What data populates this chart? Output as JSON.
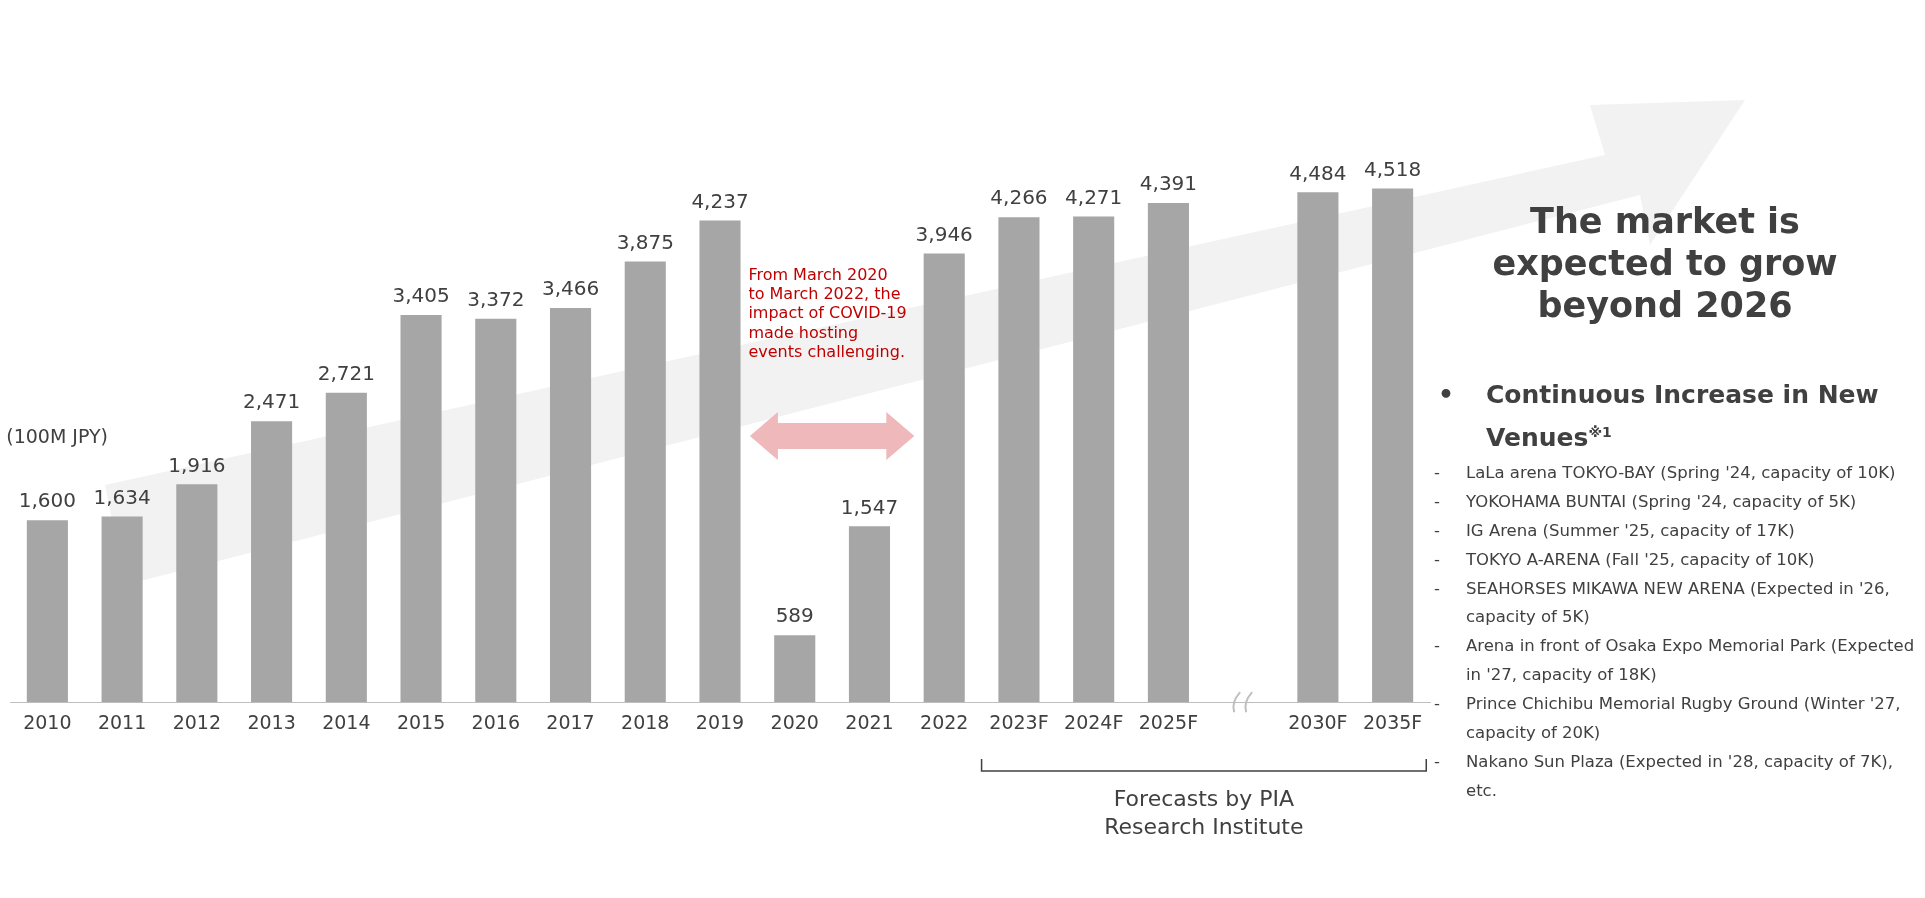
{
  "chart_data": {
    "type": "bar",
    "ylabel": "(100M JPY)",
    "categories": [
      "2010",
      "2011",
      "2012",
      "2013",
      "2014",
      "2015",
      "2016",
      "2017",
      "2018",
      "2019",
      "2020",
      "2021",
      "2022",
      "2023F",
      "2024F",
      "2025F",
      null,
      "2030F",
      "2035F"
    ],
    "values": [
      1600,
      1634,
      1916,
      2471,
      2721,
      3405,
      3372,
      3466,
      3875,
      4237,
      589,
      1547,
      3946,
      4266,
      4271,
      4391,
      null,
      4484,
      4518
    ],
    "color": "#a6a6a6",
    "value_labels": [
      "1,600",
      "1,634",
      "1,916",
      "2,471",
      "2,721",
      "3,405",
      "3,372",
      "3,466",
      "3,875",
      "4,237",
      "589",
      "1,547",
      "3,946",
      "4,266",
      "4,271",
      "4,391",
      null,
      "4,484",
      "4,518"
    ],
    "legend": false,
    "grid": false,
    "annotations": [
      "From March 2020 to March 2022, the impact of COVID-19 made hosting events challenging.",
      "Forecasts by PIA Research Institute",
      "The market is expected to grow beyond 2026",
      "• Continuous Increase in New Venues$^{※1}$",
      "- LaLa arena TOKYO-BAY  (Spring '24, capacity of 10K)",
      "- YOKOHAMA BUNTAI (Spring '24, capacity of 5K)",
      "- IG Arena (Summer '25, capacity of 17K)",
      "- TOKYO A-ARENA (Fall '25, capacity of 10K)",
      "- SEAHORSES MIKAWA NEW ARENA (Expected in '26, capacity of 5K)",
      "- Arena in front of Osaka Expo Memorial Park (Expected in '27, capacity of 18K)",
      "- Prince Chichibu Memorial Rugby Ground (Winter '27, capacity of 20K)",
      "- Nakano Sun Plaza (Expected in '28, capacity of 7K), etc."
    ]
  }
}
